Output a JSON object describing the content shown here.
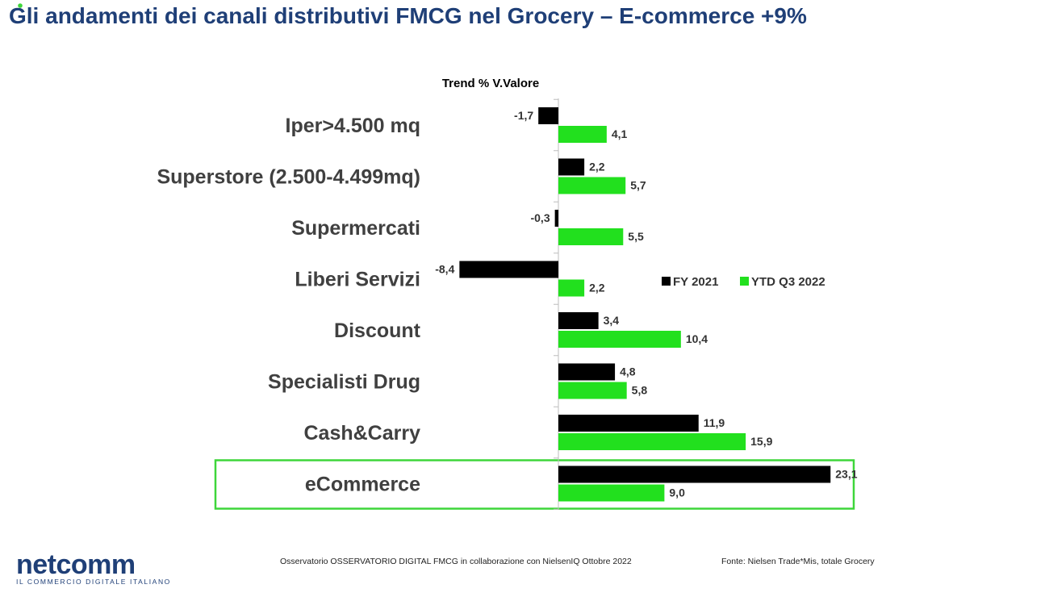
{
  "page": {
    "title": "Gli andamenti dei canali distributivi FMCG nel Grocery – E-commerce +9%",
    "footer_center": "Osservatorio OSSERVATORIO DIGITAL FMCG in collaborazione con NielsenIQ Ottobre 2022",
    "footer_right": "Fonte: Nielsen Trade*Mis, totale Grocery",
    "logo_word": "netcomm",
    "logo_tagline": "IL COMMERCIO DIGITALE ITALIANO"
  },
  "colors": {
    "fy2021": "#000000",
    "ytd2022": "#22e01e",
    "highlight_border": "#3ed63a",
    "title": "#1f3f77",
    "category_text": "#404040"
  },
  "chart_data": {
    "type": "bar",
    "orientation": "horizontal",
    "title": "Trend % V.Valore",
    "categories": [
      "Iper>4.500 mq",
      "Superstore (2.500-4.499mq)",
      "Supermercati",
      "Liberi Servizi",
      "Discount",
      "Specialisti Drug",
      "Cash&Carry",
      "eCommerce"
    ],
    "series": [
      {
        "name": "FY 2021",
        "values": [
          -1.7,
          2.2,
          -0.3,
          -8.4,
          3.4,
          4.8,
          11.9,
          23.1
        ],
        "labels": [
          "-1,7",
          "2,2",
          "-0,3",
          "-8,4",
          "3,4",
          "4,8",
          "11,9",
          "23,1"
        ]
      },
      {
        "name": "YTD Q3 2022",
        "values": [
          4.1,
          5.7,
          5.5,
          2.2,
          10.4,
          5.8,
          15.9,
          9.0
        ],
        "labels": [
          "4,1",
          "5,7",
          "5,5",
          "2,2",
          "10,4",
          "5,8",
          "15,9",
          "9,0"
        ]
      }
    ],
    "highlighted_category": "eCommerce",
    "legend_position": "right",
    "grid": false
  }
}
